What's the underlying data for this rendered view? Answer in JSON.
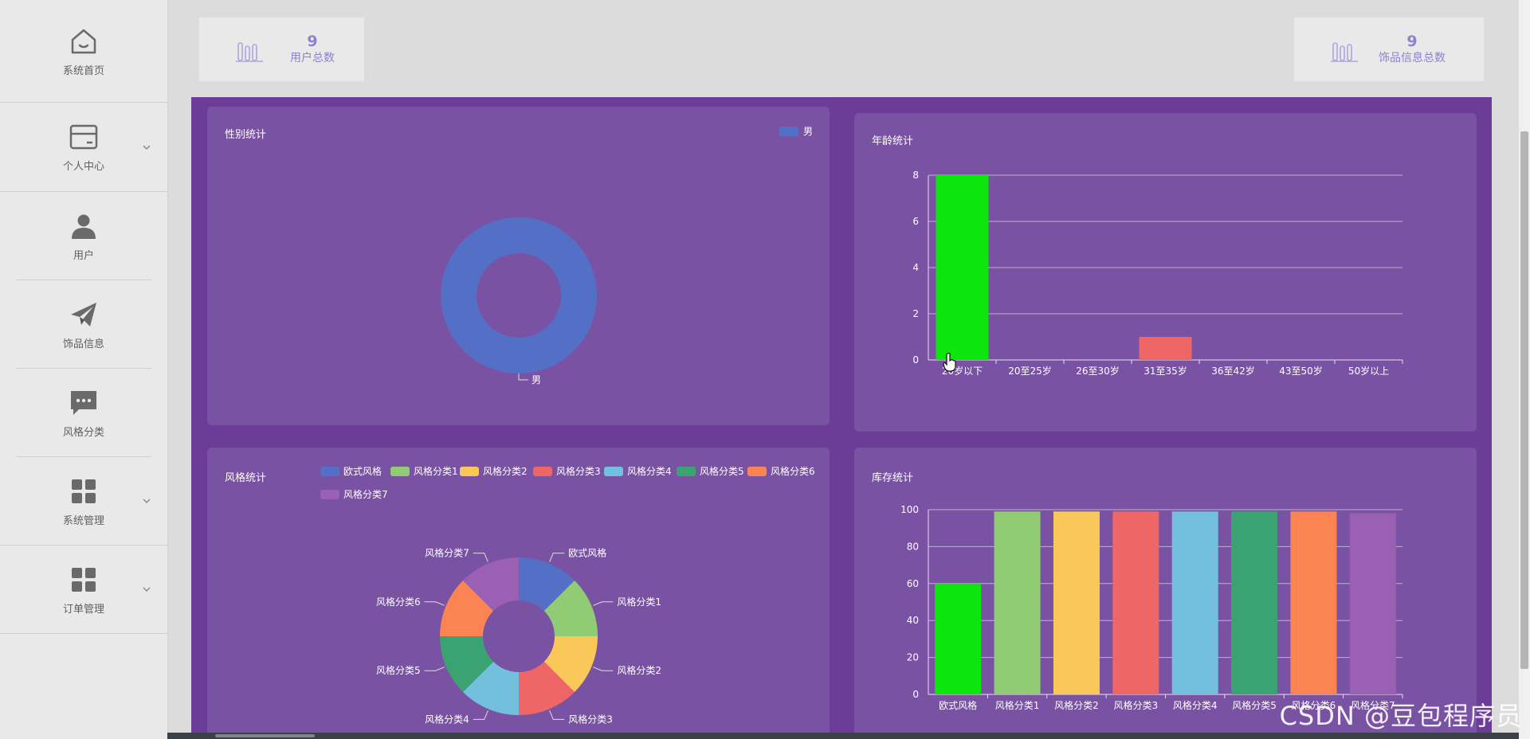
{
  "sidebar": {
    "items": [
      {
        "label": "系统首页",
        "icon": "home-icon",
        "has_submenu": false
      },
      {
        "label": "个人中心",
        "icon": "card-icon",
        "has_submenu": true
      },
      {
        "label": "用户",
        "icon": "user-icon",
        "has_submenu": false
      },
      {
        "label": "饰品信息",
        "icon": "paper-plane-icon",
        "has_submenu": false
      },
      {
        "label": "风格分类",
        "icon": "chat-icon",
        "has_submenu": false
      },
      {
        "label": "系统管理",
        "icon": "grid-icon",
        "has_submenu": true
      },
      {
        "label": "订单管理",
        "icon": "grid-icon",
        "has_submenu": true
      }
    ]
  },
  "stats": {
    "users": {
      "value": "9",
      "label": "用户总数",
      "icon": "bar-chart-icon"
    },
    "items": {
      "value": "9",
      "label": "饰品信息总数",
      "icon": "bar-chart-icon"
    }
  },
  "colors": {
    "dashboard_bg": "#6c3d98",
    "panel_bg": "#7a52a3",
    "accent": "#9080d0",
    "palette": [
      "#5470c6",
      "#91cc75",
      "#fac858",
      "#ee6666",
      "#73c0de",
      "#3ba272",
      "#fc8452",
      "#9a60b4"
    ],
    "bar_highlight": "#0ce60c"
  },
  "charts": [
    {
      "id": "gender",
      "type": "pie",
      "title": "性别统计",
      "legend": [
        "男"
      ],
      "slices": [
        {
          "name": "男",
          "value": 9
        }
      ]
    },
    {
      "id": "age",
      "type": "bar",
      "title": "年龄统计",
      "categories": [
        "20岁以下",
        "20至25岁",
        "26至30岁",
        "31至35岁",
        "36至42岁",
        "43至50岁",
        "50岁以上"
      ],
      "values": [
        8,
        0,
        0,
        1,
        0,
        0,
        0
      ],
      "ylim": [
        0,
        8
      ],
      "yticks": [
        0,
        2,
        4,
        6,
        8
      ]
    },
    {
      "id": "style",
      "type": "pie",
      "title": "风格统计",
      "legend": [
        "欧式风格",
        "风格分类1",
        "风格分类2",
        "风格分类3",
        "风格分类4",
        "风格分类5",
        "风格分类6",
        "风格分类7"
      ],
      "slices": [
        {
          "name": "欧式风格",
          "value": 1
        },
        {
          "name": "风格分类1",
          "value": 1
        },
        {
          "name": "风格分类2",
          "value": 1
        },
        {
          "name": "风格分类3",
          "value": 1
        },
        {
          "name": "风格分类4",
          "value": 1
        },
        {
          "name": "风格分类5",
          "value": 1
        },
        {
          "name": "风格分类6",
          "value": 1
        },
        {
          "name": "风格分类7",
          "value": 1
        }
      ]
    },
    {
      "id": "stock",
      "type": "bar",
      "title": "库存统计",
      "categories": [
        "欧式风格",
        "风格分类1",
        "风格分类2",
        "风格分类3",
        "风格分类4",
        "风格分类5",
        "风格分类6",
        "风格分类7"
      ],
      "values": [
        60,
        99,
        99,
        99,
        99,
        99,
        99,
        98
      ],
      "ylim": [
        0,
        100
      ],
      "yticks": [
        0,
        20,
        40,
        60,
        80,
        100
      ]
    }
  ],
  "chart_data": [
    {
      "type": "pie",
      "title": "性别统计",
      "categories": [
        "男"
      ],
      "values": [
        9
      ],
      "legend": [
        "男"
      ]
    },
    {
      "type": "bar",
      "title": "年龄统计",
      "categories": [
        "20岁以下",
        "20至25岁",
        "26至30岁",
        "31至35岁",
        "36至42岁",
        "43至50岁",
        "50岁以上"
      ],
      "values": [
        8,
        0,
        0,
        1,
        0,
        0,
        0
      ],
      "ylim": [
        0,
        8
      ]
    },
    {
      "type": "pie",
      "title": "风格统计",
      "categories": [
        "欧式风格",
        "风格分类1",
        "风格分类2",
        "风格分类3",
        "风格分类4",
        "风格分类5",
        "风格分类6",
        "风格分类7"
      ],
      "values": [
        1,
        1,
        1,
        1,
        1,
        1,
        1,
        1
      ]
    },
    {
      "type": "bar",
      "title": "库存统计",
      "categories": [
        "欧式风格",
        "风格分类1",
        "风格分类2",
        "风格分类3",
        "风格分类4",
        "风格分类5",
        "风格分类6",
        "风格分类7"
      ],
      "values": [
        60,
        99,
        99,
        99,
        99,
        99,
        99,
        98
      ],
      "ylim": [
        0,
        100
      ]
    }
  ],
  "watermark": "CSDN @豆包程序员"
}
